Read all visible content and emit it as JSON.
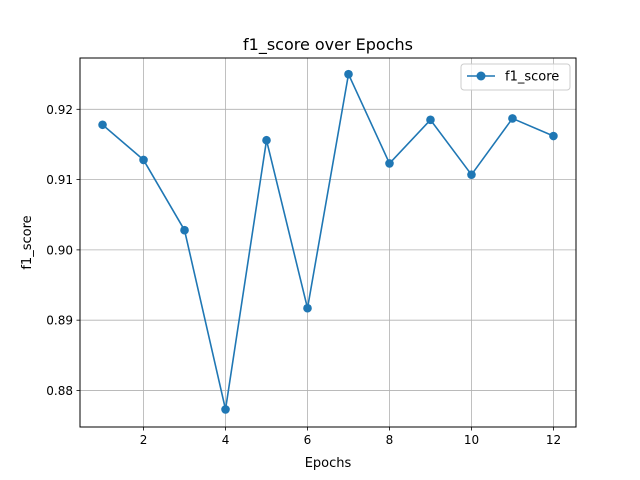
{
  "chart_data": {
    "type": "line",
    "title": "f1_score over Epochs",
    "xlabel": "Epochs",
    "ylabel": "f1_score",
    "xlim": [
      0.45,
      12.55
    ],
    "ylim": [
      0.8748,
      0.9273
    ],
    "xticks": [
      2,
      4,
      6,
      8,
      10,
      12
    ],
    "xtick_labels": [
      "2",
      "4",
      "6",
      "8",
      "10",
      "12"
    ],
    "yticks": [
      0.88,
      0.89,
      0.9,
      0.91,
      0.92
    ],
    "ytick_labels": [
      "0.88",
      "0.89",
      "0.90",
      "0.91",
      "0.92"
    ],
    "grid": true,
    "legend_position": "top-right",
    "series": [
      {
        "name": "f1_score",
        "color": "#1f77b4",
        "marker": "circle",
        "x": [
          1,
          2,
          3,
          4,
          5,
          6,
          7,
          8,
          9,
          10,
          11,
          12
        ],
        "y": [
          0.9178,
          0.9128,
          0.9028,
          0.8773,
          0.9156,
          0.8917,
          0.925,
          0.9123,
          0.9185,
          0.9107,
          0.9187,
          0.9162
        ]
      }
    ]
  }
}
